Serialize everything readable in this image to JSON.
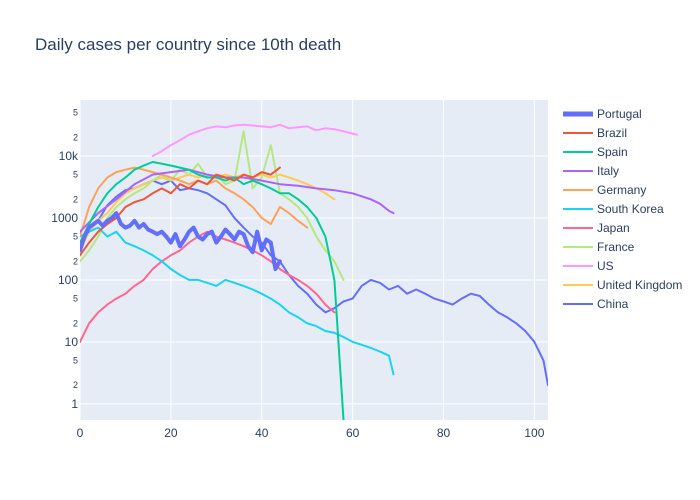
{
  "chart_data": {
    "type": "line",
    "title": "Daily cases per country since 10th death",
    "xlabel": "",
    "ylabel": "",
    "y_scale": "log",
    "xlim": [
      0,
      103
    ],
    "ylim": [
      0.55,
      80000
    ],
    "x_ticks": [
      0,
      20,
      40,
      60,
      80,
      100
    ],
    "y_major_ticks": [
      {
        "value": 1,
        "label": "1"
      },
      {
        "value": 10,
        "label": "10"
      },
      {
        "value": 100,
        "label": "100"
      },
      {
        "value": 1000,
        "label": "1000"
      },
      {
        "value": 10000,
        "label": "10k"
      }
    ],
    "y_minor_ticks": [
      {
        "value": 2,
        "label": "2"
      },
      {
        "value": 5,
        "label": "5"
      },
      {
        "value": 20,
        "label": "2"
      },
      {
        "value": 50,
        "label": "5"
      },
      {
        "value": 200,
        "label": "2"
      },
      {
        "value": 500,
        "label": "5"
      },
      {
        "value": 2000,
        "label": "2"
      },
      {
        "value": 5000,
        "label": "5"
      },
      {
        "value": 20000,
        "label": "2"
      },
      {
        "value": 50000,
        "label": "5"
      }
    ],
    "grid": true,
    "legend_position": "right",
    "series": [
      {
        "name": "Portugal",
        "color": "#636efa",
        "highlight": true,
        "x": [
          0,
          1,
          2,
          3,
          4,
          5,
          6,
          7,
          8,
          9,
          10,
          11,
          12,
          13,
          14,
          15,
          16,
          17,
          18,
          19,
          20,
          21,
          22,
          23,
          24,
          25,
          26,
          27,
          28,
          29,
          30,
          31,
          32,
          33,
          34,
          35,
          36,
          37,
          38,
          39,
          40,
          41,
          42,
          43,
          44
        ],
        "y": [
          300,
          500,
          700,
          800,
          900,
          750,
          900,
          1000,
          1200,
          800,
          700,
          750,
          900,
          700,
          800,
          650,
          600,
          550,
          600,
          500,
          400,
          550,
          350,
          450,
          600,
          700,
          500,
          450,
          550,
          600,
          400,
          500,
          650,
          550,
          450,
          600,
          550,
          350,
          280,
          600,
          300,
          450,
          400,
          150,
          200
        ]
      },
      {
        "name": "Brazil",
        "color": "#ef553b",
        "x": [
          0,
          2,
          4,
          6,
          8,
          10,
          12,
          14,
          16,
          18,
          20,
          22,
          24,
          26,
          28,
          30,
          32,
          34,
          36,
          38,
          40,
          42,
          44
        ],
        "y": [
          250,
          400,
          600,
          800,
          1000,
          1500,
          1800,
          2000,
          2500,
          3000,
          2500,
          3500,
          3000,
          4000,
          3500,
          5000,
          4500,
          4000,
          5000,
          4500,
          5500,
          5000,
          6500
        ]
      },
      {
        "name": "Spain",
        "color": "#00cc96",
        "x": [
          0,
          2,
          4,
          6,
          8,
          10,
          12,
          14,
          16,
          18,
          20,
          22,
          24,
          26,
          28,
          30,
          32,
          34,
          36,
          38,
          40,
          42,
          44,
          46,
          48,
          50,
          52,
          54,
          56,
          58
        ],
        "y": [
          400,
          800,
          1500,
          2500,
          3500,
          4500,
          6000,
          7000,
          8000,
          7500,
          7000,
          6500,
          6000,
          5000,
          4500,
          4500,
          4000,
          4500,
          3500,
          4000,
          3500,
          3000,
          2500,
          2500,
          2000,
          1500,
          1000,
          500,
          100,
          0.5
        ]
      },
      {
        "name": "Italy",
        "color": "#ab63fa",
        "x": [
          0,
          4,
          8,
          12,
          16,
          20,
          24,
          28,
          32,
          36,
          40,
          44,
          48,
          52,
          56,
          60,
          64,
          66,
          68,
          69
        ],
        "y": [
          600,
          1200,
          2000,
          3500,
          5000,
          5500,
          6000,
          5000,
          4500,
          4500,
          4000,
          3500,
          3300,
          3000,
          2800,
          2500,
          2000,
          1700,
          1300,
          1200
        ]
      },
      {
        "name": "Germany",
        "color": "#ffa15a",
        "x": [
          0,
          2,
          4,
          6,
          8,
          10,
          12,
          14,
          16,
          18,
          20,
          22,
          24,
          26,
          28,
          30,
          32,
          34,
          36,
          38,
          40,
          42,
          44,
          46,
          48,
          50
        ],
        "y": [
          500,
          1500,
          3000,
          4500,
          5500,
          6000,
          6500,
          6000,
          5500,
          5000,
          4500,
          4000,
          3500,
          4000,
          3500,
          4000,
          3000,
          2500,
          2000,
          1500,
          1000,
          800,
          1500,
          1200,
          900,
          700
        ]
      },
      {
        "name": "South Korea",
        "color": "#19d3f3",
        "x": [
          0,
          2,
          4,
          6,
          8,
          10,
          12,
          14,
          16,
          18,
          20,
          22,
          24,
          26,
          28,
          30,
          32,
          34,
          36,
          38,
          40,
          42,
          44,
          46,
          48,
          50,
          52,
          54,
          56,
          58,
          60,
          62,
          64,
          66,
          68,
          69
        ],
        "y": [
          500,
          600,
          700,
          500,
          600,
          400,
          350,
          300,
          250,
          200,
          150,
          120,
          100,
          100,
          90,
          80,
          100,
          90,
          80,
          70,
          60,
          50,
          40,
          30,
          25,
          20,
          18,
          15,
          14,
          12,
          10,
          9,
          8,
          7,
          6,
          3
        ]
      },
      {
        "name": "Japan",
        "color": "#ff6692",
        "x": [
          0,
          2,
          4,
          6,
          8,
          10,
          12,
          14,
          16,
          18,
          20,
          22,
          24,
          26,
          28,
          30,
          32,
          34,
          36,
          38,
          40,
          42,
          44,
          46,
          48,
          50,
          52,
          54,
          56
        ],
        "y": [
          10,
          20,
          30,
          40,
          50,
          60,
          80,
          100,
          150,
          200,
          250,
          300,
          400,
          500,
          600,
          500,
          450,
          400,
          350,
          300,
          250,
          200,
          150,
          120,
          100,
          80,
          60,
          40,
          30
        ]
      },
      {
        "name": "France",
        "color": "#b6e880",
        "x": [
          0,
          2,
          4,
          6,
          8,
          10,
          12,
          14,
          16,
          18,
          20,
          22,
          24,
          26,
          28,
          30,
          32,
          34,
          36,
          38,
          40,
          42,
          44,
          46,
          48,
          50,
          52,
          54,
          56,
          58
        ],
        "y": [
          200,
          300,
          500,
          1000,
          1500,
          2000,
          2500,
          3000,
          4000,
          5000,
          4000,
          6000,
          5000,
          7500,
          4500,
          5000,
          3500,
          4000,
          25000,
          3000,
          4500,
          15000,
          2500,
          2000,
          1500,
          1000,
          500,
          300,
          200,
          100
        ]
      },
      {
        "name": "US",
        "color": "#ff97ff",
        "x": [
          16,
          18,
          20,
          22,
          24,
          26,
          28,
          30,
          32,
          34,
          36,
          38,
          40,
          42,
          44,
          46,
          48,
          50,
          52,
          54,
          56,
          58,
          60,
          61
        ],
        "y": [
          10000,
          12000,
          15000,
          18000,
          22000,
          25000,
          28000,
          30000,
          29000,
          31000,
          32000,
          31000,
          30000,
          29000,
          32000,
          28000,
          29000,
          30000,
          26000,
          28000,
          27000,
          25000,
          23000,
          22000
        ]
      },
      {
        "name": "United Kingdom",
        "color": "#fecb52",
        "x": [
          0,
          2,
          4,
          6,
          8,
          10,
          12,
          14,
          16,
          18,
          20,
          22,
          24,
          26,
          28,
          30,
          32,
          34,
          36,
          38,
          40,
          42,
          44,
          46,
          48,
          50,
          52,
          54,
          56
        ],
        "y": [
          300,
          600,
          900,
          1200,
          1800,
          2500,
          3000,
          3500,
          4000,
          4500,
          4000,
          4500,
          5000,
          4500,
          5000,
          4500,
          5000,
          4500,
          5000,
          4500,
          5000,
          4500,
          5000,
          4500,
          4000,
          3500,
          3000,
          2500,
          2000
        ]
      },
      {
        "name": "China",
        "color": "#636efa",
        "x": [
          0,
          2,
          4,
          6,
          8,
          10,
          12,
          14,
          16,
          18,
          20,
          22,
          24,
          26,
          28,
          30,
          32,
          34,
          36,
          38,
          40,
          42,
          44,
          46,
          48,
          50,
          52,
          54,
          56,
          58,
          60,
          62,
          64,
          66,
          68,
          70,
          72,
          74,
          76,
          78,
          80,
          82,
          84,
          86,
          88,
          90,
          92,
          94,
          96,
          98,
          100,
          102,
          103
        ],
        "y": [
          350,
          600,
          900,
          1600,
          2200,
          2800,
          3000,
          3500,
          4000,
          3500,
          4000,
          2800,
          3000,
          2800,
          2500,
          2000,
          1600,
          1000,
          700,
          500,
          400,
          250,
          200,
          120,
          80,
          60,
          40,
          30,
          35,
          45,
          50,
          80,
          100,
          90,
          70,
          80,
          60,
          70,
          60,
          50,
          45,
          40,
          50,
          60,
          55,
          40,
          30,
          25,
          20,
          15,
          10,
          5,
          2
        ]
      }
    ]
  }
}
